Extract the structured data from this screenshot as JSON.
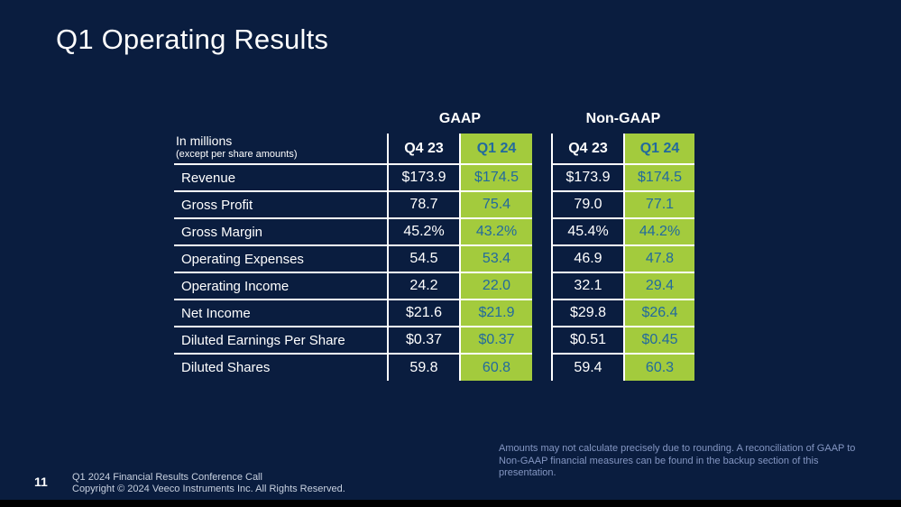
{
  "slide": {
    "title": "Q1 Operating Results"
  },
  "table": {
    "unit_label": "In millions",
    "unit_note": "(except per share amounts)",
    "groups": [
      "GAAP",
      "Non-GAAP"
    ],
    "periods": [
      "Q4 23",
      "Q1 24"
    ],
    "rows": [
      {
        "label": "Revenue",
        "values": [
          "$173.9",
          "$174.5",
          "$173.9",
          "$174.5"
        ]
      },
      {
        "label": "Gross Profit",
        "values": [
          "78.7",
          "75.4",
          "79.0",
          "77.1"
        ]
      },
      {
        "label": "Gross Margin",
        "values": [
          "45.2%",
          "43.2%",
          "45.4%",
          "44.2%"
        ]
      },
      {
        "label": "Operating Expenses",
        "values": [
          "54.5",
          "53.4",
          "46.9",
          "47.8"
        ]
      },
      {
        "label": "Operating Income",
        "values": [
          "24.2",
          "22.0",
          "32.1",
          "29.4"
        ]
      },
      {
        "label": "Net Income",
        "values": [
          "$21.6",
          "$21.9",
          "$29.8",
          "$26.4"
        ]
      },
      {
        "label": "Diluted Earnings Per Share",
        "values": [
          "$0.37",
          "$0.37",
          "$0.51",
          "$0.45"
        ]
      },
      {
        "label": "Diluted Shares",
        "values": [
          "59.8",
          "60.8",
          "59.4",
          "60.3"
        ]
      }
    ]
  },
  "footnote": "Amounts may not calculate precisely due to rounding.  A reconciliation of GAAP to Non-GAAP financial measures can be found in the backup section of this presentation.",
  "footer": {
    "page_number": "11",
    "line1": "Q1 2024 Financial Results Conference Call",
    "line2": "Copyright © 2024 Veeco Instruments Inc. All Rights Reserved."
  },
  "colors": {
    "background_navy": "#0a1d3f",
    "highlight_green": "#a3cb3d",
    "highlight_text_blue": "#226a9d",
    "table_border_white": "#ffffff",
    "footnote_blue": "#8496c2",
    "footer_gray": "#c8d1e0"
  }
}
